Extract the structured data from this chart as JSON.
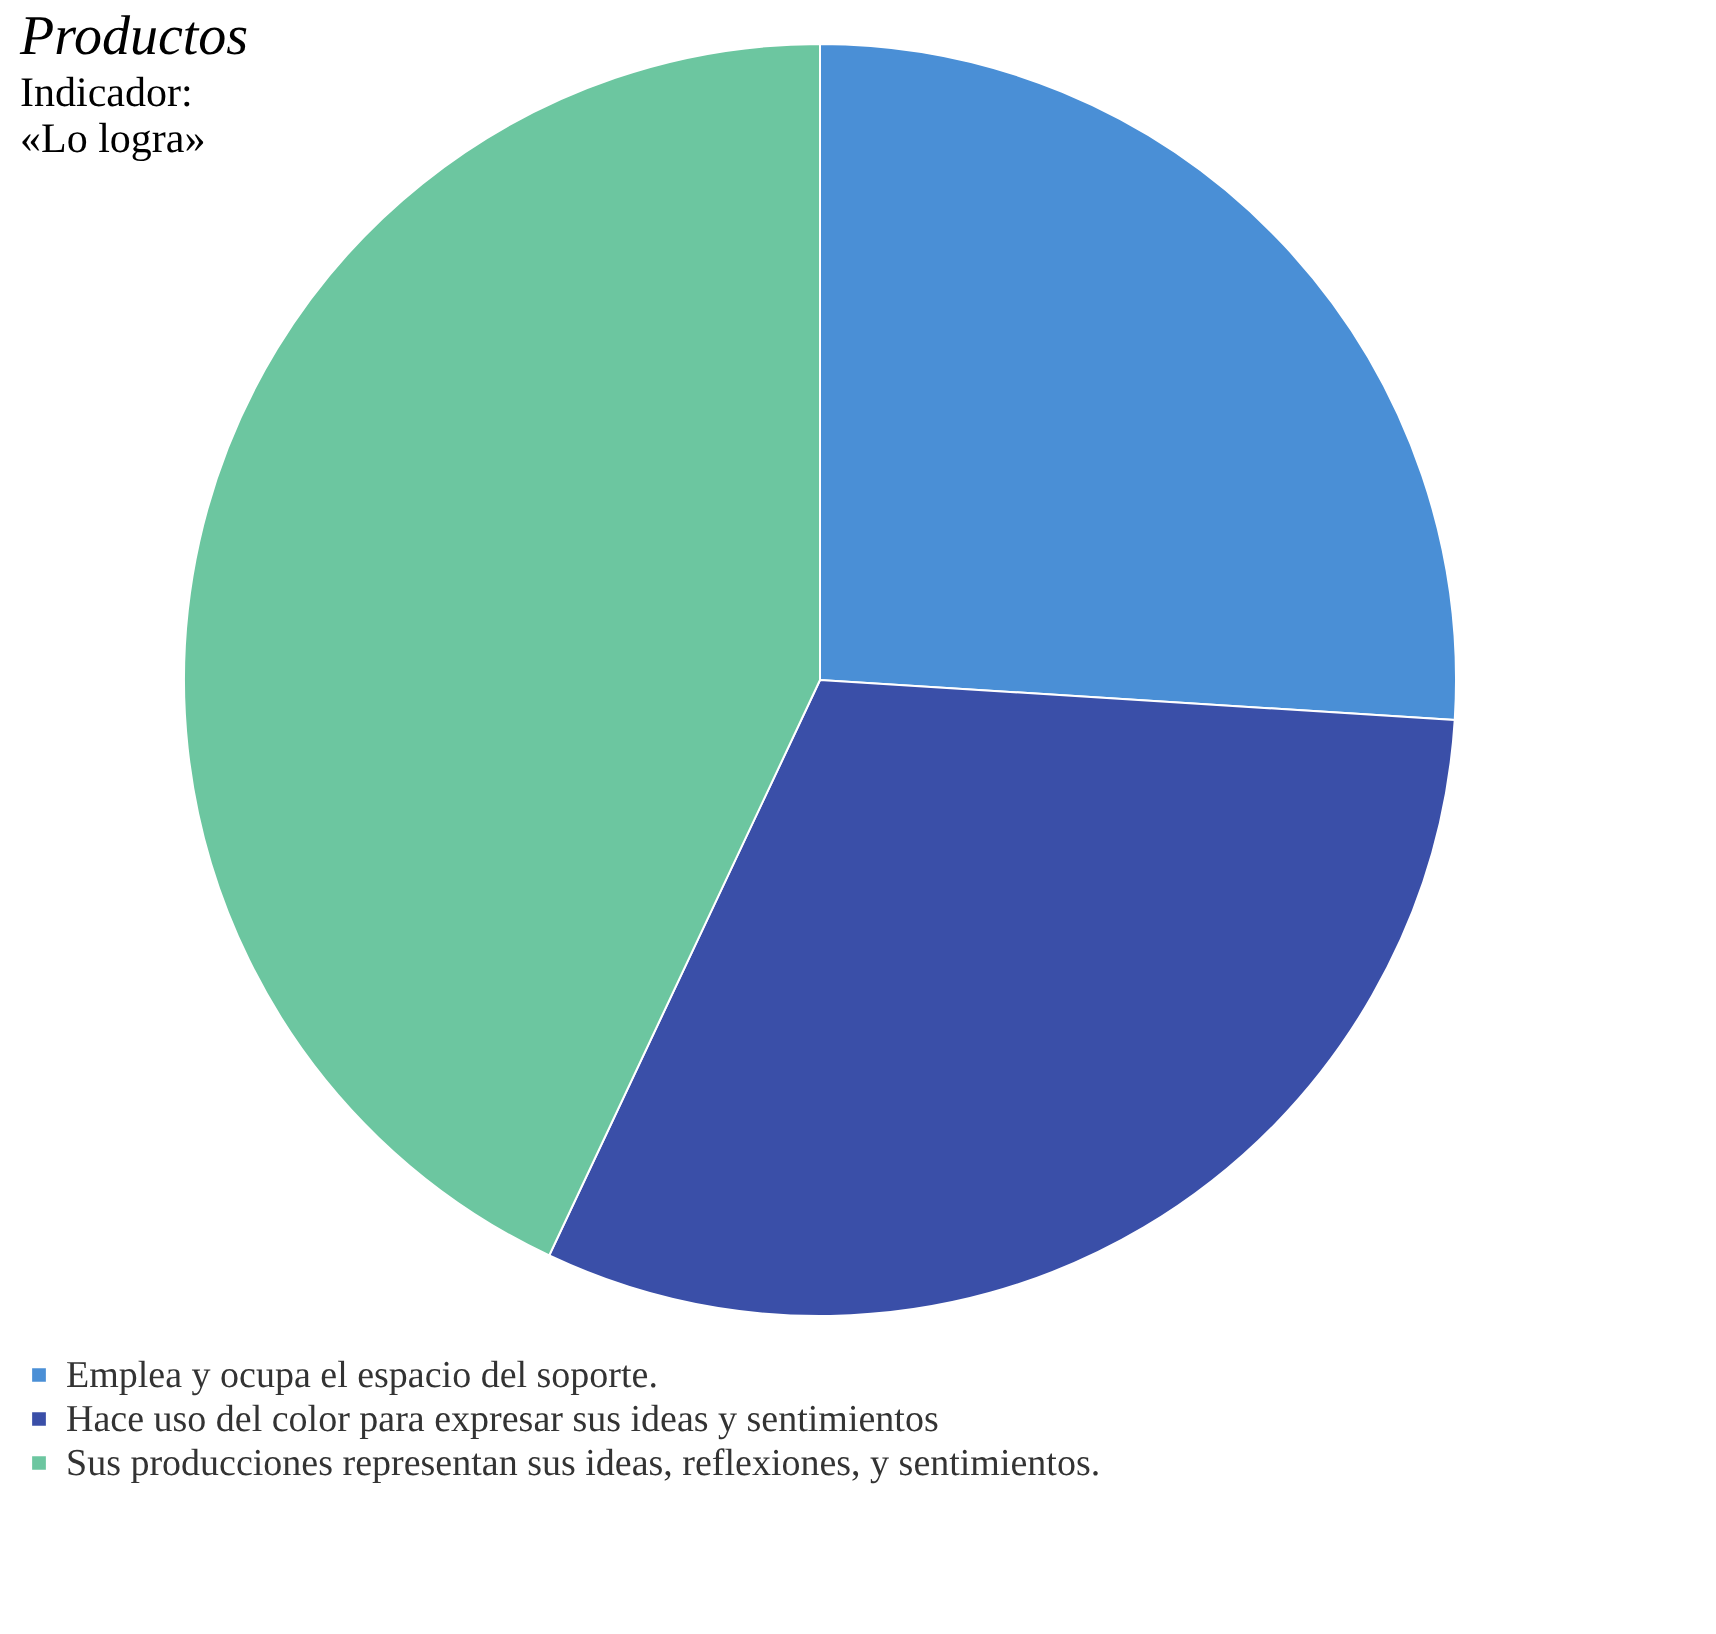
{
  "chart_data": {
    "type": "pie",
    "title": "Productos",
    "subtitle": "Indicador:\n«Lo logra»",
    "categories": [
      "Emplea y ocupa el espacio del soporte.",
      "Hace uso del color para expresar sus ideas y sentimientos",
      "Sus producciones representan sus ideas, reflexiones, y sentimientos."
    ],
    "values": [
      26,
      31,
      43
    ],
    "colors": [
      "#4a8fd6",
      "#3a4fa8",
      "#6cc6a0"
    ],
    "legend": "bottom"
  }
}
